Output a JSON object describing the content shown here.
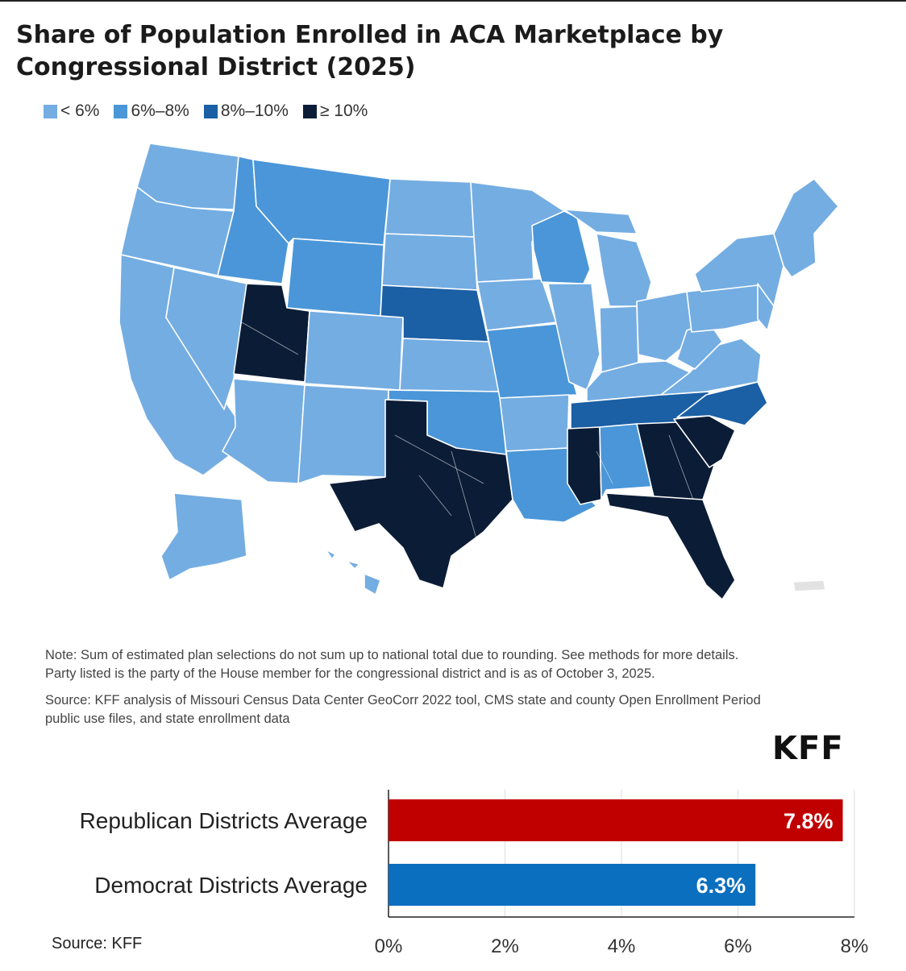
{
  "title": "Share of Population Enrolled in ACA Marketplace by Congressional District (2025)",
  "legend": [
    {
      "label": "< 6%",
      "color": "#74ade2"
    },
    {
      "label": "6%–8%",
      "color": "#4a96d8"
    },
    {
      "label": "8%–10%",
      "color": "#1b5fa4"
    },
    {
      "label": "≥ 10%",
      "color": "#0b1c36"
    }
  ],
  "map": {
    "boundary_color": "#ffffff",
    "states": [
      {
        "name": "Washington",
        "class": "<6%"
      },
      {
        "name": "Oregon",
        "class": "<6%"
      },
      {
        "name": "California",
        "class": "<6%"
      },
      {
        "name": "Nevada",
        "class": "<6%"
      },
      {
        "name": "Idaho",
        "class": "6%–8%"
      },
      {
        "name": "Montana",
        "class": "6%–8%"
      },
      {
        "name": "Wyoming",
        "class": "6%–8%"
      },
      {
        "name": "Utah",
        "class": "≥10%"
      },
      {
        "name": "Arizona",
        "class": "<6%"
      },
      {
        "name": "Colorado",
        "class": "<6%"
      },
      {
        "name": "New Mexico",
        "class": "<6%"
      },
      {
        "name": "North Dakota",
        "class": "<6%"
      },
      {
        "name": "South Dakota",
        "class": "<6%"
      },
      {
        "name": "Nebraska",
        "class": "8%–10%"
      },
      {
        "name": "Kansas",
        "class": "<6%"
      },
      {
        "name": "Oklahoma",
        "class": "6%–8%"
      },
      {
        "name": "Texas",
        "class": "≥10%"
      },
      {
        "name": "Minnesota",
        "class": "<6%"
      },
      {
        "name": "Iowa",
        "class": "<6%"
      },
      {
        "name": "Missouri",
        "class": "6%–8%"
      },
      {
        "name": "Arkansas",
        "class": "<6%"
      },
      {
        "name": "Louisiana",
        "class": "6%–8%"
      },
      {
        "name": "Wisconsin",
        "class": "6%–8%"
      },
      {
        "name": "Illinois",
        "class": "<6%"
      },
      {
        "name": "Michigan",
        "class": "<6%"
      },
      {
        "name": "Indiana",
        "class": "<6%"
      },
      {
        "name": "Ohio",
        "class": "<6%"
      },
      {
        "name": "Kentucky",
        "class": "<6%"
      },
      {
        "name": "Tennessee",
        "class": "8%–10%"
      },
      {
        "name": "Mississippi",
        "class": "≥10%"
      },
      {
        "name": "Alabama",
        "class": "6%–8%"
      },
      {
        "name": "Georgia",
        "class": "≥10%"
      },
      {
        "name": "Florida",
        "class": "≥10%"
      },
      {
        "name": "South Carolina",
        "class": "≥10%"
      },
      {
        "name": "North Carolina",
        "class": "8%–10%"
      },
      {
        "name": "Virginia",
        "class": "<6%"
      },
      {
        "name": "West Virginia",
        "class": "<6%"
      },
      {
        "name": "Pennsylvania",
        "class": "<6%"
      },
      {
        "name": "New York",
        "class": "<6%"
      },
      {
        "name": "New England",
        "class": "<6%"
      },
      {
        "name": "Alaska",
        "class": "<6%"
      },
      {
        "name": "Hawaii",
        "class": "<6%"
      },
      {
        "name": "Puerto Rico",
        "class": "no data"
      }
    ]
  },
  "note": "Note: Sum of estimated plan selections do not sum up to national total due to rounding. See methods for more details. Party listed is the party of the House member for the congressional district and is as of October 3, 2025.",
  "source": "Source: KFF analysis of Missouri Census Data Center GeoCorr 2022 tool, CMS state and county Open Enrollment Period public use files, and state enrollment data",
  "logo": "KFF",
  "chart_data": {
    "type": "bar",
    "orientation": "horizontal",
    "categories": [
      "Republican Districts Average",
      "Democrat Districts Average"
    ],
    "values": [
      7.8,
      6.3
    ],
    "value_labels": [
      "7.8%",
      "6.3%"
    ],
    "colors": [
      "#c00000",
      "#0b6fbf"
    ],
    "xlim": [
      0,
      8
    ],
    "xticks": [
      "0%",
      "2%",
      "4%",
      "6%",
      "8%"
    ],
    "grid": true
  },
  "bar_source": "Source: KFF"
}
